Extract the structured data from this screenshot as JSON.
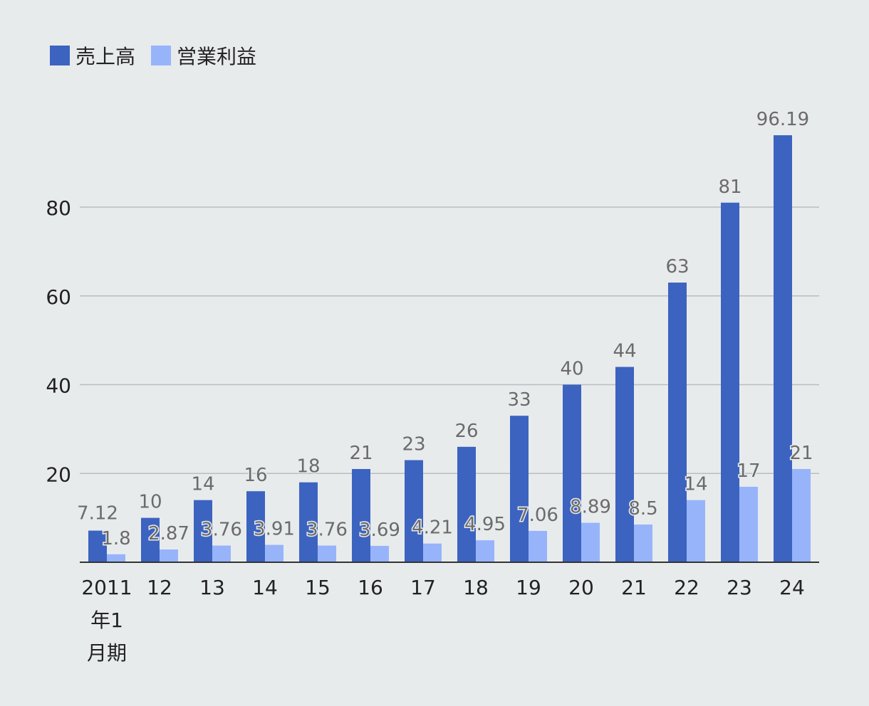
{
  "chart_data": {
    "type": "bar",
    "categories": [
      "2011\n年1\n月期",
      "12",
      "13",
      "14",
      "15",
      "16",
      "17",
      "18",
      "19",
      "20",
      "21",
      "22",
      "23",
      "24"
    ],
    "series": [
      {
        "name": "売上高",
        "color": "#3c63c0",
        "values": [
          7.12,
          10,
          14,
          16,
          18,
          21,
          23,
          26,
          33,
          40,
          44,
          63,
          81,
          96.19
        ]
      },
      {
        "name": "営業利益",
        "color": "#97b4fb",
        "values": [
          1.8,
          2.87,
          3.76,
          3.91,
          3.76,
          3.69,
          4.21,
          4.95,
          7.06,
          8.89,
          8.5,
          14,
          17,
          21
        ]
      }
    ],
    "y_ticks": [
      20,
      40,
      60,
      80
    ],
    "ylim": [
      0,
      100
    ],
    "grid": true,
    "legend_position": "top-left",
    "label_color": "#6b6b6b",
    "axis_label_color": "#222222",
    "grid_color": "#b9bdc1",
    "axis_color": "#333333"
  }
}
